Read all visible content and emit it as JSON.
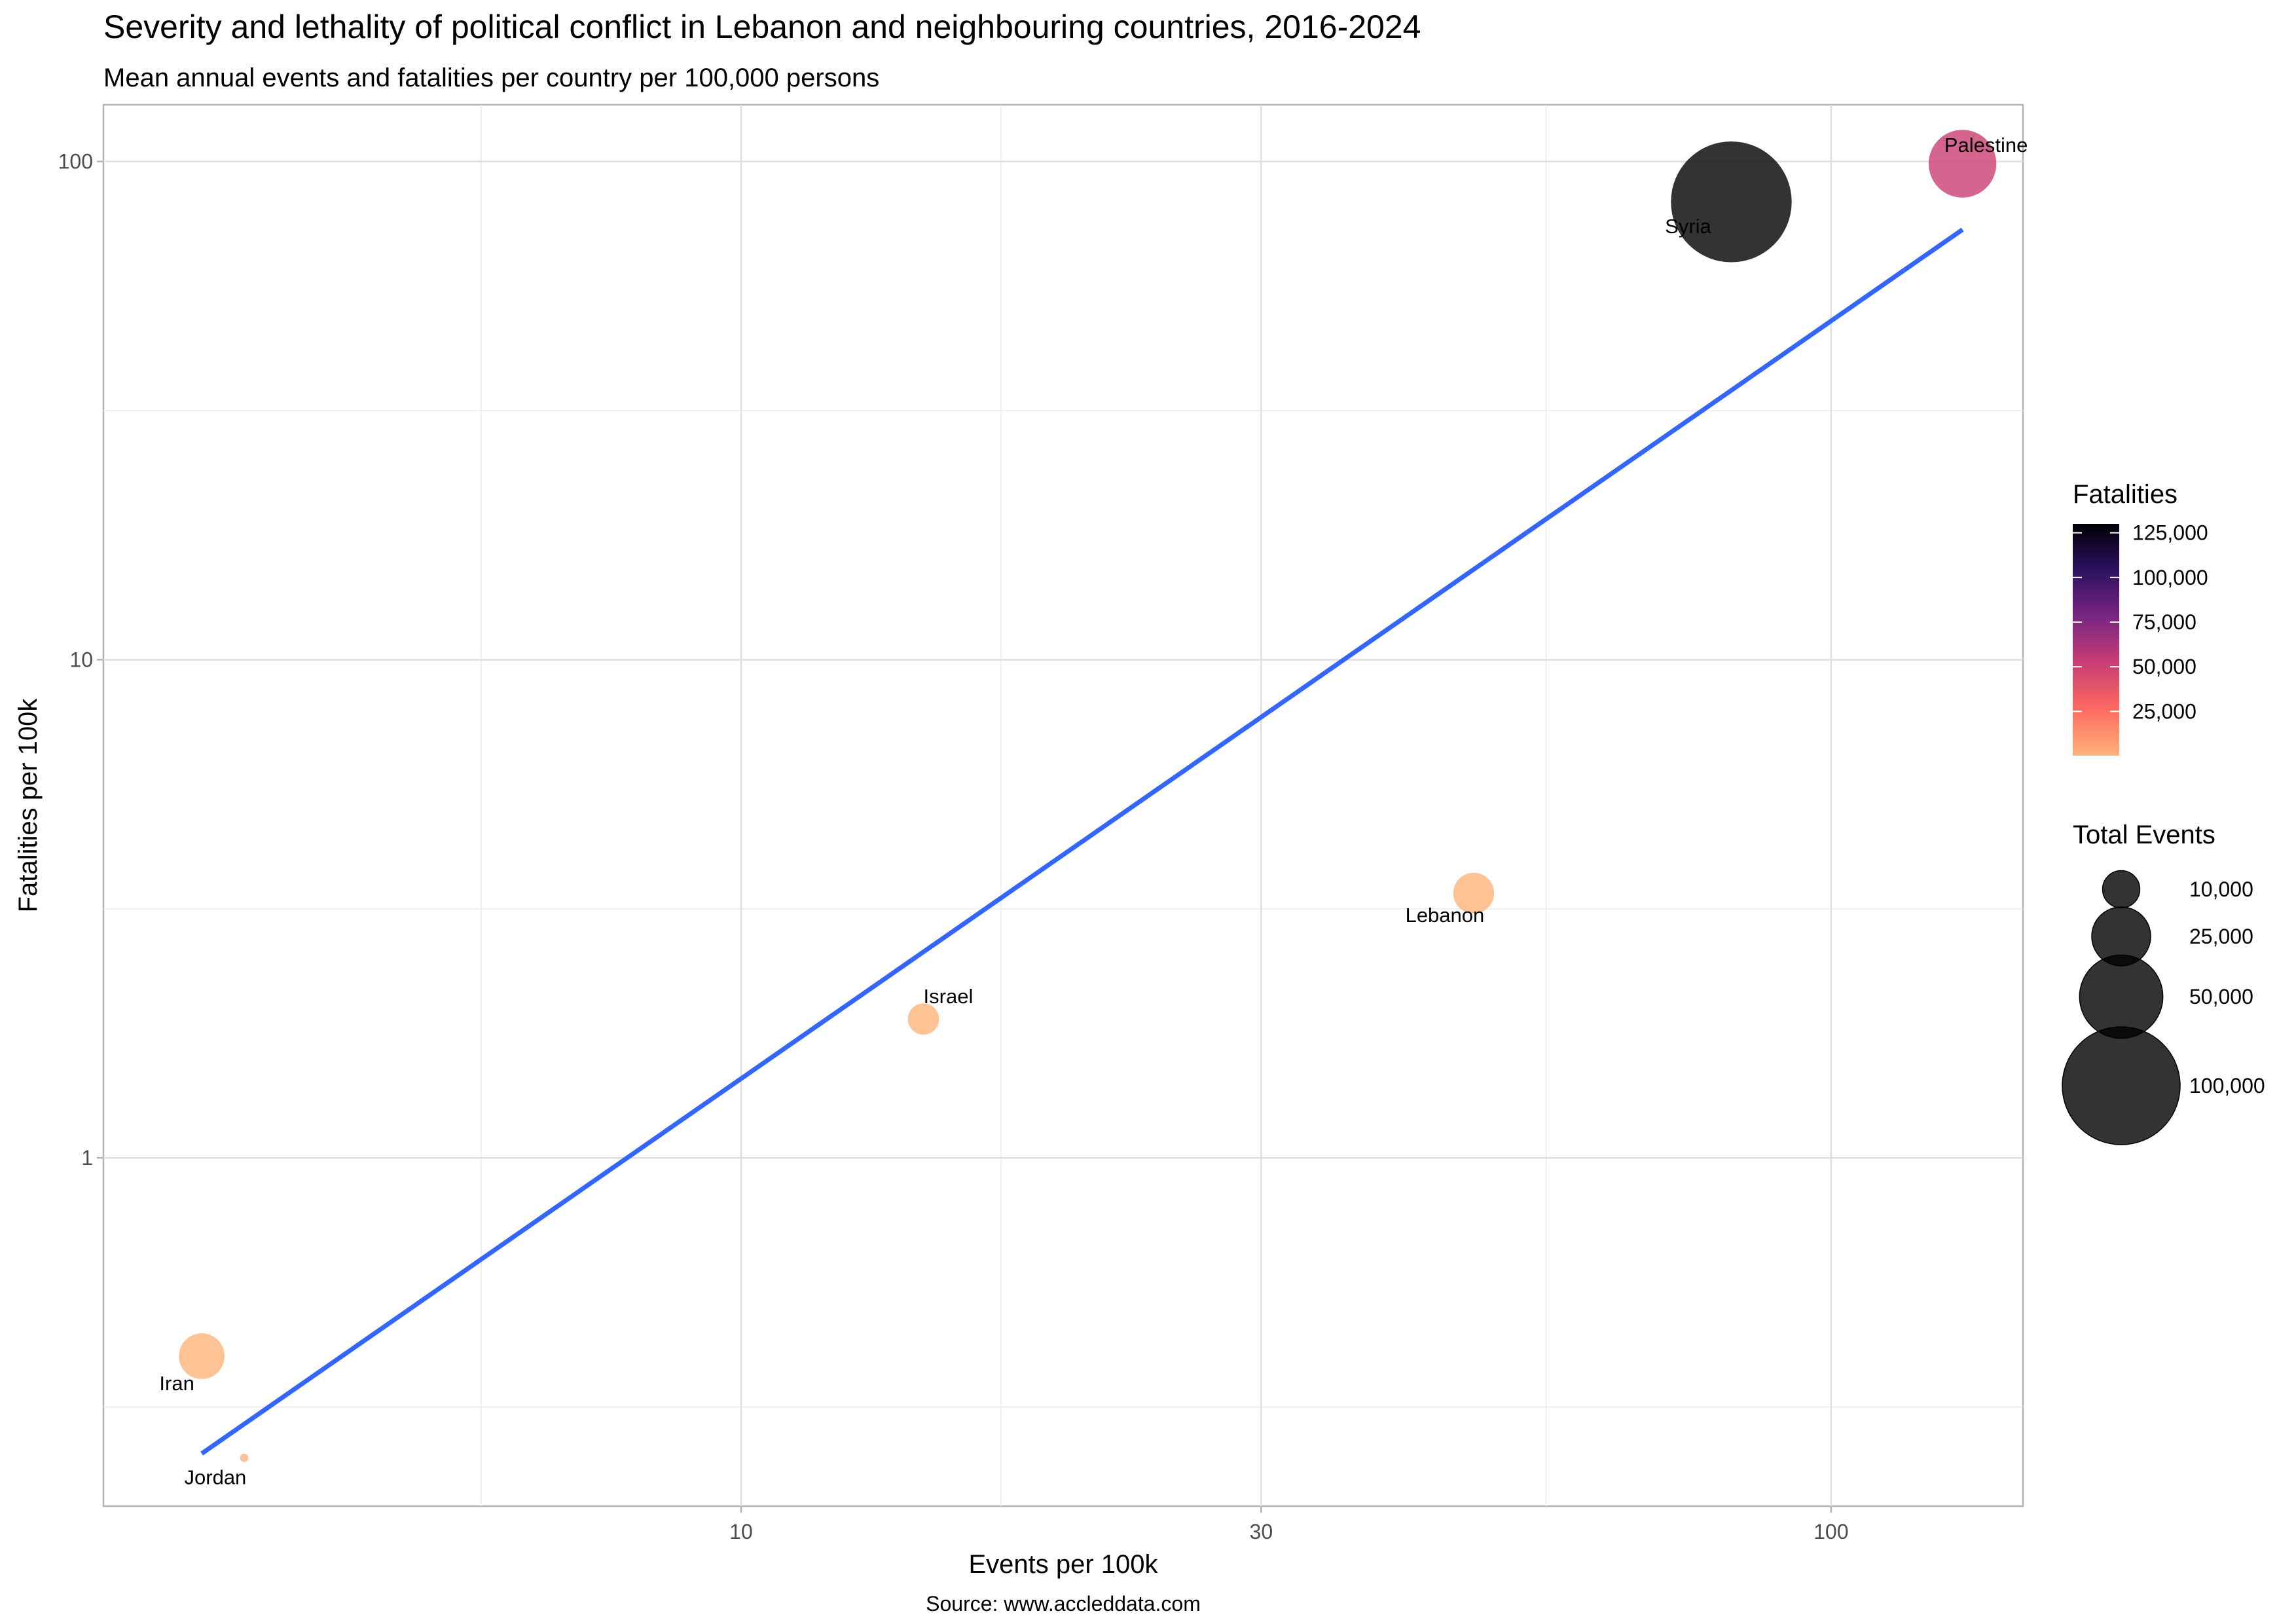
{
  "chart_data": {
    "type": "scatter",
    "title": "Severity and lethality of political conflict in Lebanon and neighbouring countries, 2016-2024",
    "subtitle": "Mean annual events and fatalities per country per 100,000 persons",
    "xlabel": "Events per 100k",
    "ylabel": "Fatalities per 100k",
    "caption": "Source: www.accleddata.com",
    "x_scale": "log10",
    "y_scale": "log10",
    "xlim": [
      2.6,
      150
    ],
    "ylim": [
      0.2,
      130
    ],
    "x_ticks": [
      10,
      30,
      100
    ],
    "x_tick_labels": [
      "10",
      "30",
      "100"
    ],
    "y_ticks": [
      1,
      10,
      100
    ],
    "y_tick_labels": [
      "1",
      "10",
      "100"
    ],
    "grid": true,
    "points": [
      {
        "label": "Iran",
        "x": 3.2,
        "y": 0.4,
        "total_events": 15000,
        "fatalities": 5000,
        "color": "#FEB47B"
      },
      {
        "label": "Jordan",
        "x": 3.5,
        "y": 0.25,
        "total_events": 500,
        "fatalities": 200,
        "color": "#FEB47B"
      },
      {
        "label": "Israel",
        "x": 14.7,
        "y": 1.9,
        "total_events": 7000,
        "fatalities": 3000,
        "color": "#FEB47B"
      },
      {
        "label": "Lebanon",
        "x": 47,
        "y": 3.4,
        "total_events": 12000,
        "fatalities": 5000,
        "color": "#FEB47B"
      },
      {
        "label": "Syria",
        "x": 81,
        "y": 83,
        "total_events": 105000,
        "fatalities": 130000,
        "color": "#000004"
      },
      {
        "label": "Palestine",
        "x": 132,
        "y": 99,
        "total_events": 33000,
        "fatalities": 50000,
        "color": "#C83E73"
      }
    ],
    "trend_line": {
      "color": "#3366FF",
      "points": [
        [
          3.2,
          0.255
        ],
        [
          132,
          73
        ]
      ]
    },
    "legend": {
      "placement": "right",
      "fatalities": {
        "title": "Fatalities",
        "breaks": [
          25000,
          50000,
          75000,
          100000,
          125000
        ],
        "labels": [
          "25,000",
          "50,000",
          "75,000",
          "100,000",
          "125,000"
        ],
        "range": [
          200,
          130000
        ],
        "colors": [
          "#FEB47B",
          "#FE6A61",
          "#C83E73",
          "#7A2582",
          "#2D1160",
          "#000004"
        ]
      },
      "total_events": {
        "title": "Total Events",
        "breaks": [
          10000,
          25000,
          50000,
          100000
        ],
        "labels": [
          "10,000",
          "25,000",
          "50,000",
          "100,000"
        ]
      }
    }
  }
}
